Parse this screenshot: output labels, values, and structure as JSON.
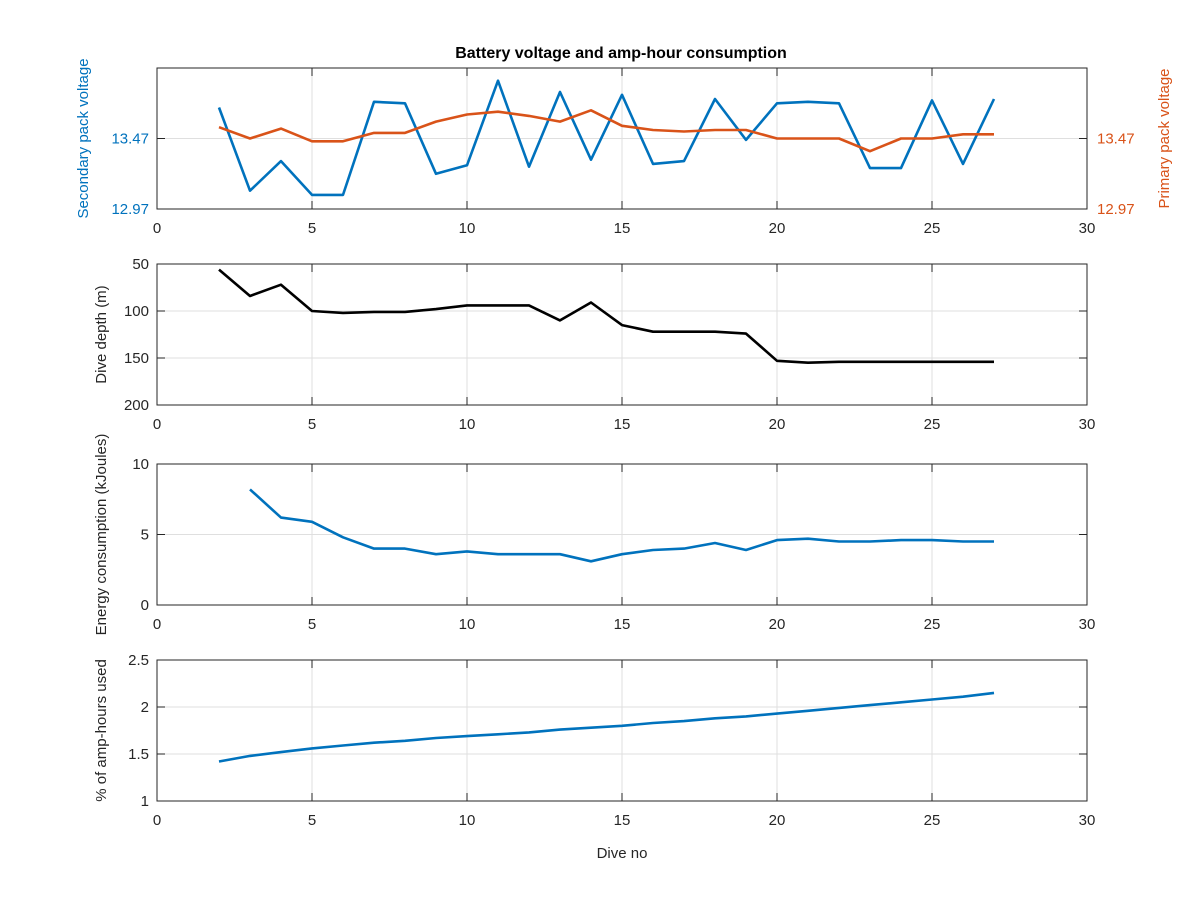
{
  "title": "Battery voltage and amp-hour consumption",
  "colors": {
    "secondary": "#0072bd",
    "primary": "#d95319",
    "depth": "#000000",
    "energy": "#0072bd",
    "amphours": "#0072bd"
  },
  "chart_data": [
    {
      "type": "line",
      "title": "Battery voltage and amp-hour consumption",
      "xlabel": "",
      "ylabel": "Secondary pack voltage",
      "ylabel_right": "Primary pack voltage",
      "xlim": [
        0,
        30
      ],
      "xticks": [
        "0",
        "5",
        "10",
        "15",
        "20",
        "25",
        "30"
      ],
      "ylim": [
        12.97,
        13.97
      ],
      "yticks": [
        "12.97",
        "13.47"
      ],
      "yticks_right": [
        "12.97",
        "13.47"
      ],
      "grid": true,
      "x": [
        2,
        3,
        4,
        5,
        6,
        7,
        8,
        9,
        10,
        11,
        12,
        13,
        14,
        15,
        16,
        17,
        18,
        19,
        20,
        21,
        22,
        23,
        24,
        25,
        26,
        27
      ],
      "series": [
        {
          "name": "Secondary pack voltage",
          "axis": "left",
          "values": [
            13.69,
            13.1,
            13.31,
            13.07,
            13.07,
            13.73,
            13.72,
            13.22,
            13.28,
            13.88,
            13.27,
            13.8,
            13.32,
            13.78,
            13.29,
            13.31,
            13.75,
            13.46,
            13.72,
            13.73,
            13.72,
            13.26,
            13.26,
            13.74,
            13.29,
            13.75
          ]
        },
        {
          "name": "Primary pack voltage",
          "axis": "right",
          "values": [
            13.55,
            13.47,
            13.54,
            13.45,
            13.45,
            13.51,
            13.51,
            13.59,
            13.64,
            13.66,
            13.63,
            13.59,
            13.67,
            13.56,
            13.53,
            13.52,
            13.53,
            13.53,
            13.47,
            13.47,
            13.47,
            13.38,
            13.47,
            13.47,
            13.5,
            13.5
          ]
        }
      ]
    },
    {
      "type": "line",
      "xlabel": "",
      "ylabel": "Dive depth (m)",
      "xlim": [
        0,
        30
      ],
      "xticks": [
        "0",
        "5",
        "10",
        "15",
        "20",
        "25",
        "30"
      ],
      "ylim": [
        50,
        200
      ],
      "y_reversed": true,
      "yticks": [
        "50",
        "100",
        "150",
        "200"
      ],
      "grid": true,
      "x": [
        2,
        3,
        4,
        5,
        6,
        7,
        8,
        9,
        10,
        11,
        12,
        13,
        14,
        15,
        16,
        17,
        18,
        19,
        20,
        21,
        22,
        23,
        24,
        25,
        26,
        27
      ],
      "series": [
        {
          "name": "Dive depth (m)",
          "values": [
            56,
            84,
            72,
            100,
            102,
            101,
            101,
            98,
            94,
            94,
            94,
            110,
            91,
            115,
            122,
            122,
            122,
            124,
            153,
            155,
            154,
            154,
            154,
            154,
            154,
            154
          ]
        }
      ]
    },
    {
      "type": "line",
      "xlabel": "",
      "ylabel": "Energy consumption (kJoules)",
      "xlim": [
        0,
        30
      ],
      "xticks": [
        "0",
        "5",
        "10",
        "15",
        "20",
        "25",
        "30"
      ],
      "ylim": [
        0,
        10
      ],
      "yticks": [
        "0",
        "5",
        "10"
      ],
      "grid": true,
      "x": [
        3,
        4,
        5,
        6,
        7,
        8,
        9,
        10,
        11,
        12,
        13,
        14,
        15,
        16,
        17,
        18,
        19,
        20,
        21,
        22,
        23,
        24,
        25,
        26,
        27
      ],
      "series": [
        {
          "name": "Energy consumption (kJoules)",
          "values": [
            8.2,
            6.2,
            5.9,
            4.8,
            4.0,
            4.0,
            3.6,
            3.8,
            3.6,
            3.6,
            3.6,
            3.1,
            3.6,
            3.9,
            4.0,
            4.4,
            3.9,
            4.6,
            4.7,
            4.5,
            4.5,
            4.6,
            4.6,
            4.5,
            4.5
          ]
        }
      ]
    },
    {
      "type": "line",
      "xlabel": "Dive no",
      "ylabel": "% of amp-hours used",
      "xlim": [
        0,
        30
      ],
      "xticks": [
        "0",
        "5",
        "10",
        "15",
        "20",
        "25",
        "30"
      ],
      "ylim": [
        1,
        2.5
      ],
      "yticks": [
        "1",
        "1.5",
        "2",
        "2.5"
      ],
      "grid": true,
      "x": [
        2,
        3,
        4,
        5,
        6,
        7,
        8,
        9,
        10,
        11,
        12,
        13,
        14,
        15,
        16,
        17,
        18,
        19,
        20,
        21,
        22,
        23,
        24,
        25,
        26,
        27
      ],
      "series": [
        {
          "name": "% of amp-hours used",
          "values": [
            1.42,
            1.48,
            1.52,
            1.56,
            1.59,
            1.62,
            1.64,
            1.67,
            1.69,
            1.71,
            1.73,
            1.76,
            1.78,
            1.8,
            1.83,
            1.85,
            1.88,
            1.9,
            1.93,
            1.96,
            1.99,
            2.02,
            2.05,
            2.08,
            2.11,
            2.15
          ]
        }
      ]
    }
  ]
}
